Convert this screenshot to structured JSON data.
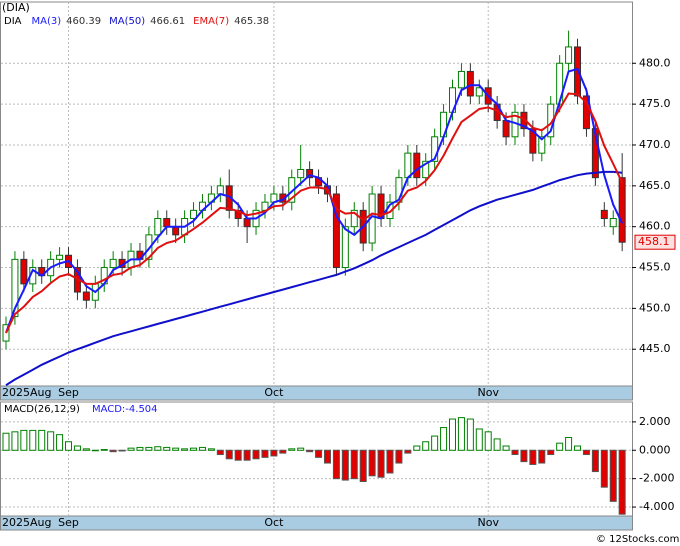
{
  "chart_data": [
    {
      "type": "candlestick",
      "title": "(DIA)",
      "ticker": "DIA",
      "categories": [
        "2025Aug",
        null,
        null,
        null,
        null,
        null,
        null,
        "Sep",
        null,
        null,
        null,
        null,
        null,
        null,
        null,
        null,
        null,
        null,
        null,
        null,
        null,
        null,
        null,
        null,
        null,
        null,
        null,
        null,
        null,
        null,
        "Oct",
        null,
        null,
        null,
        null,
        null,
        null,
        null,
        null,
        null,
        null,
        null,
        null,
        null,
        null,
        null,
        null,
        null,
        null,
        null,
        null,
        null,
        null,
        null,
        "Nov",
        null,
        null,
        null,
        null,
        null,
        null,
        null,
        null,
        null,
        null,
        null,
        null,
        null,
        null,
        null
      ],
      "open": [
        446,
        449,
        456,
        453,
        455,
        454,
        456,
        456.5,
        455,
        452,
        451,
        453,
        455,
        456,
        455,
        457,
        456,
        459,
        461,
        460,
        459,
        461,
        462,
        463,
        464,
        465,
        462,
        461,
        460,
        462,
        463,
        464,
        463,
        466,
        467,
        466,
        465,
        464,
        455,
        460,
        462,
        458,
        464,
        461,
        463,
        466,
        469,
        466,
        468,
        471,
        474,
        477,
        479,
        476,
        477,
        475,
        473,
        471,
        474,
        472,
        469,
        471,
        475,
        480,
        482,
        476,
        472,
        462,
        460,
        466
      ],
      "high": [
        449,
        457,
        457,
        456,
        456,
        457,
        457.5,
        457.5,
        456,
        453,
        454,
        456,
        457,
        457,
        458,
        458,
        460,
        462,
        462,
        461,
        462,
        463,
        464,
        465,
        466,
        467,
        463,
        462,
        463,
        464,
        465,
        465,
        467,
        470,
        468,
        467,
        466,
        465,
        461,
        463,
        463,
        465,
        465,
        464,
        467,
        470,
        470,
        469,
        472,
        475,
        478,
        480,
        480,
        478,
        478,
        476,
        474,
        475,
        475,
        473,
        472,
        476,
        481,
        484,
        483,
        477,
        473,
        463,
        462,
        469
      ],
      "low": [
        445,
        448,
        452,
        452,
        453,
        453,
        455,
        454,
        451,
        450,
        450,
        452,
        454,
        454,
        454,
        455,
        455,
        458,
        459,
        458,
        458,
        460,
        461,
        462,
        463,
        461,
        460,
        458,
        459,
        461,
        462,
        462,
        462,
        465,
        465,
        464,
        463,
        454,
        454,
        459,
        457,
        457,
        460,
        460,
        462,
        465,
        465,
        465,
        467,
        470,
        473,
        476,
        475,
        475,
        474,
        472,
        470,
        470,
        471,
        468,
        468,
        470,
        474,
        479,
        475,
        471,
        465,
        460,
        459,
        457
      ],
      "close": [
        448,
        456,
        453,
        455,
        454,
        456,
        456.5,
        455,
        452,
        451,
        453,
        455,
        456,
        455,
        457,
        456,
        459,
        461,
        460,
        459,
        461,
        462,
        463,
        464,
        465,
        462,
        461,
        460,
        462,
        463,
        464,
        463,
        466,
        467,
        466,
        465,
        464,
        455,
        460,
        462,
        458,
        464,
        461,
        463,
        466,
        469,
        466,
        468,
        471,
        474,
        477,
        479,
        476,
        477,
        475,
        473,
        471,
        474,
        472,
        469,
        471,
        475,
        480,
        482,
        476,
        472,
        466,
        461,
        461,
        458.1
      ],
      "last_label": "458.1",
      "series": [
        {
          "name": "MA(3)",
          "value_label": "460.39",
          "color": "#1a1aff",
          "width": 2,
          "values": [
            447,
            450,
            452.3,
            454.7,
            454,
            455,
            455.5,
            455.8,
            454.5,
            452.7,
            452,
            453,
            454.7,
            455.3,
            456,
            456,
            457.3,
            458.7,
            460,
            460,
            460,
            460.7,
            462,
            463,
            464,
            463.7,
            462.7,
            461,
            461,
            461.7,
            463,
            463.3,
            464.3,
            465.3,
            466.3,
            466,
            465,
            461.3,
            459.7,
            459,
            460,
            461.3,
            461,
            462.7,
            463.3,
            466,
            467,
            467.7,
            468.3,
            471,
            474,
            476.7,
            477.3,
            477.3,
            476,
            475,
            473,
            472.7,
            472.3,
            471.7,
            470.7,
            471.7,
            475.3,
            479,
            479.3,
            476.7,
            471.3,
            466.3,
            462.7,
            460.39
          ]
        },
        {
          "name": "MA(50)",
          "value_label": "466.61",
          "color": "#1010cc",
          "width": 2,
          "values": [
            440.6,
            441.3,
            441.9,
            442.5,
            443.1,
            443.6,
            444.1,
            444.6,
            445.0,
            445.4,
            445.8,
            446.2,
            446.6,
            446.9,
            447.2,
            447.5,
            447.8,
            448.1,
            448.4,
            448.7,
            449.0,
            449.3,
            449.6,
            449.9,
            450.2,
            450.5,
            450.8,
            451.1,
            451.4,
            451.7,
            452.0,
            452.3,
            452.6,
            452.9,
            453.2,
            453.5,
            453.8,
            454.1,
            454.5,
            454.9,
            455.4,
            455.9,
            456.5,
            457.0,
            457.5,
            458.0,
            458.5,
            459.0,
            459.6,
            460.2,
            460.8,
            461.4,
            462.0,
            462.5,
            462.9,
            463.3,
            463.6,
            463.9,
            464.2,
            464.5,
            464.9,
            465.3,
            465.7,
            466.0,
            466.3,
            466.5,
            466.6,
            466.7,
            466.7,
            466.61
          ]
        },
        {
          "name": "EMA(7)",
          "value_label": "465.38",
          "color": "#e01010",
          "width": 2,
          "values": [
            447,
            449.3,
            450.2,
            451.4,
            452.1,
            453.1,
            453.9,
            454.2,
            453.6,
            453,
            453,
            453.5,
            454.1,
            454.3,
            455,
            455.3,
            456.2,
            457.4,
            458,
            458.3,
            459,
            459.7,
            460.5,
            461.4,
            462.3,
            462.2,
            461.9,
            461.4,
            461.6,
            461.9,
            462.5,
            462.6,
            463.5,
            464.4,
            464.8,
            464.8,
            464.6,
            462.2,
            461.6,
            461.7,
            460.8,
            461.6,
            461.4,
            461.8,
            462.9,
            464.4,
            464.8,
            465.6,
            466.9,
            468.7,
            470.8,
            472.8,
            473.6,
            474.4,
            474.6,
            474.2,
            473.4,
            473.6,
            473.2,
            472.1,
            471.8,
            472.6,
            474.4,
            476.3,
            476.2,
            475.2,
            472.9,
            469.9,
            467.7,
            465.38
          ]
        }
      ],
      "up_color": "#008000",
      "down_color": "#e00000",
      "ylim": [
        440.5,
        487.5
      ],
      "yticks": [
        {
          "value": 445,
          "label": "445.0"
        },
        {
          "value": 450,
          "label": "450.0"
        },
        {
          "value": 455,
          "label": "455.0"
        },
        {
          "value": 460,
          "label": "460.0"
        },
        {
          "value": 465,
          "label": "465.0"
        },
        {
          "value": 470,
          "label": "470.0"
        },
        {
          "value": 475,
          "label": "475.0"
        },
        {
          "value": 480,
          "label": "480.0"
        }
      ],
      "grid": true
    },
    {
      "type": "bar",
      "title": "MACD(26,12,9)",
      "legend_label": "MACD:-4.504",
      "categories": [
        "2025Aug",
        null,
        null,
        null,
        null,
        null,
        null,
        "Sep",
        null,
        null,
        null,
        null,
        null,
        null,
        null,
        null,
        null,
        null,
        null,
        null,
        null,
        null,
        null,
        null,
        null,
        null,
        null,
        null,
        null,
        null,
        "Oct",
        null,
        null,
        null,
        null,
        null,
        null,
        null,
        null,
        null,
        null,
        null,
        null,
        null,
        null,
        null,
        null,
        null,
        null,
        null,
        null,
        null,
        null,
        null,
        "Nov",
        null,
        null,
        null,
        null,
        null,
        null,
        null,
        null,
        null,
        null,
        null,
        null,
        null,
        null,
        null
      ],
      "values": [
        1.2,
        1.3,
        1.4,
        1.4,
        1.4,
        1.3,
        1.1,
        0.6,
        0.3,
        0.1,
        0.0,
        0.05,
        -0.1,
        -0.05,
        0.15,
        0.2,
        0.2,
        0.25,
        0.2,
        0.15,
        0.1,
        0.15,
        0.2,
        0.1,
        -0.3,
        -0.6,
        -0.7,
        -0.7,
        -0.6,
        -0.5,
        -0.4,
        -0.2,
        0.1,
        0.15,
        -0.1,
        -0.5,
        -0.9,
        -2.0,
        -2.1,
        -2.0,
        -2.2,
        -1.8,
        -1.9,
        -1.6,
        -0.9,
        -0.2,
        0.3,
        0.6,
        1.0,
        1.6,
        2.2,
        2.3,
        2.2,
        1.5,
        1.3,
        0.8,
        0.3,
        -0.3,
        -0.8,
        -1.0,
        -0.9,
        -0.3,
        0.5,
        0.9,
        0.3,
        -0.3,
        -1.5,
        -2.6,
        -3.6,
        -4.504
      ],
      "up_color": "#008000",
      "down_color": "#e00000",
      "ylim": [
        -4.63,
        3.4
      ],
      "yticks": [
        {
          "value": 2,
          "label": "2.000"
        },
        {
          "value": 0,
          "label": "0.000"
        },
        {
          "value": -2,
          "label": "-2.000"
        },
        {
          "value": -4,
          "label": "-4.000"
        }
      ],
      "grid": true
    }
  ],
  "watermark": "© 12Stocks.com"
}
